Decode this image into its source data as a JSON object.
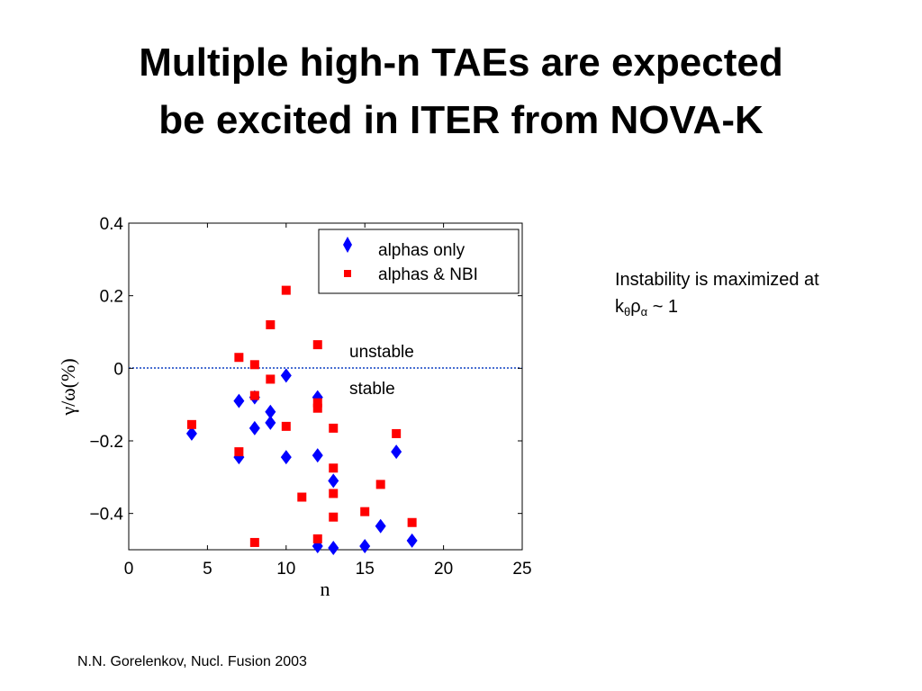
{
  "slide": {
    "title_line1": "Multiple high-n TAEs are expected",
    "title_line2": "be excited in ITER from NOVA-K",
    "note_line1": "Instability is maximized at",
    "note_k": "k",
    "note_sub_theta": "θ",
    "note_rho": "ρ",
    "note_sub_alpha": "α",
    "note_tail": " ~ 1",
    "citation": "N.N. Gorelenkov, Nucl.  Fusion 2003"
  },
  "chart_data": {
    "type": "scatter",
    "xlabel": "n",
    "ylabel": "γ/ω(%)",
    "xlim": [
      0,
      25
    ],
    "ylim": [
      -0.5,
      0.4
    ],
    "xticks": [
      0,
      5,
      10,
      15,
      20,
      25
    ],
    "xtick_labels": [
      "0",
      "5",
      "10",
      "15",
      "20",
      "25"
    ],
    "yticks": [
      0.4,
      0.2,
      0,
      -0.2,
      -0.4
    ],
    "ytick_labels": [
      "0.4",
      "0.2",
      "0",
      "−0.2",
      "−0.4"
    ],
    "grid": false,
    "legend_position": "top-right",
    "reference_line": {
      "y": 0,
      "style": "dotted",
      "color": "#4a6fd1"
    },
    "annotations": [
      {
        "text": "unstable",
        "x": 14,
        "y": 0.045
      },
      {
        "text": "stable",
        "x": 14,
        "y": -0.06
      }
    ],
    "series": [
      {
        "name": "alphas only",
        "marker": "diamond",
        "color": "#0000ff",
        "points": [
          [
            4,
            -0.18
          ],
          [
            7,
            -0.09
          ],
          [
            7,
            -0.245
          ],
          [
            8,
            -0.08
          ],
          [
            8,
            -0.165
          ],
          [
            9,
            -0.12
          ],
          [
            9,
            -0.15
          ],
          [
            10,
            -0.02
          ],
          [
            10,
            -0.245
          ],
          [
            12,
            -0.08
          ],
          [
            12,
            -0.24
          ],
          [
            12,
            -0.49
          ],
          [
            13,
            -0.31
          ],
          [
            13,
            -0.495
          ],
          [
            15,
            -0.49
          ],
          [
            16,
            -0.435
          ],
          [
            17,
            -0.23
          ],
          [
            18,
            -0.475
          ]
        ]
      },
      {
        "name": "alphas & NBI",
        "marker": "square",
        "color": "#ff0000",
        "points": [
          [
            4,
            -0.155
          ],
          [
            7,
            0.03
          ],
          [
            7,
            -0.23
          ],
          [
            8,
            0.01
          ],
          [
            8,
            -0.075
          ],
          [
            8,
            -0.48
          ],
          [
            9,
            0.12
          ],
          [
            9,
            -0.03
          ],
          [
            10,
            0.215
          ],
          [
            10,
            -0.16
          ],
          [
            11,
            -0.355
          ],
          [
            12,
            0.065
          ],
          [
            12,
            -0.095
          ],
          [
            12,
            -0.11
          ],
          [
            12,
            -0.47
          ],
          [
            13,
            -0.165
          ],
          [
            13,
            -0.275
          ],
          [
            13,
            -0.345
          ],
          [
            13,
            -0.41
          ],
          [
            15,
            -0.395
          ],
          [
            16,
            -0.32
          ],
          [
            17,
            -0.18
          ],
          [
            18,
            -0.425
          ]
        ]
      }
    ]
  }
}
